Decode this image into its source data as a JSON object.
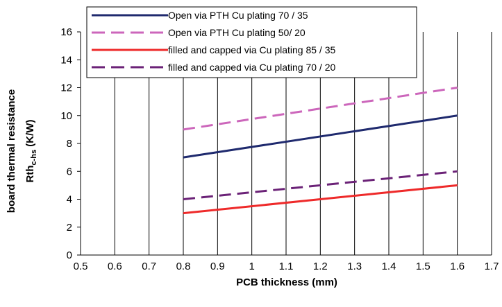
{
  "chart_data": {
    "type": "line",
    "title": "",
    "xlabel": "PCB thickness (mm)",
    "ylabel_main": "board thermal resistance",
    "ylabel_sub_prefix": "Rth",
    "ylabel_sub_subscript": "c-hs",
    "ylabel_sub_suffix": " (K/W)",
    "xlim": [
      0.5,
      1.7
    ],
    "ylim": [
      0,
      16
    ],
    "xticks": [
      "0.5",
      "0.6",
      "0.7",
      "0.8",
      "0.9",
      "1",
      "1.1",
      "1.2",
      "1.3",
      "1.4",
      "1.5",
      "1.6",
      "1.7"
    ],
    "yticks": [
      "0",
      "2",
      "4",
      "6",
      "8",
      "10",
      "12",
      "14",
      "16"
    ],
    "grid": "vertical",
    "legend_position": "top",
    "series": [
      {
        "name": "Open via PTH Cu plating 70 / 35",
        "color": "#1f2a6e",
        "dashed": false,
        "x": [
          0.8,
          1.6
        ],
        "y": [
          7,
          10
        ]
      },
      {
        "name": "Open via PTH Cu plating 50/ 20",
        "color": "#cc66bb",
        "dashed": true,
        "x": [
          0.8,
          1.6
        ],
        "y": [
          9,
          12
        ]
      },
      {
        "name": "filled and capped via Cu plating 85 / 35",
        "color": "#ee2a2a",
        "dashed": false,
        "x": [
          0.8,
          1.6
        ],
        "y": [
          3,
          5
        ]
      },
      {
        "name": "filled and capped via Cu plating 70 / 20",
        "color": "#6b2277",
        "dashed": true,
        "x": [
          0.8,
          1.6
        ],
        "y": [
          4,
          6
        ]
      }
    ]
  }
}
